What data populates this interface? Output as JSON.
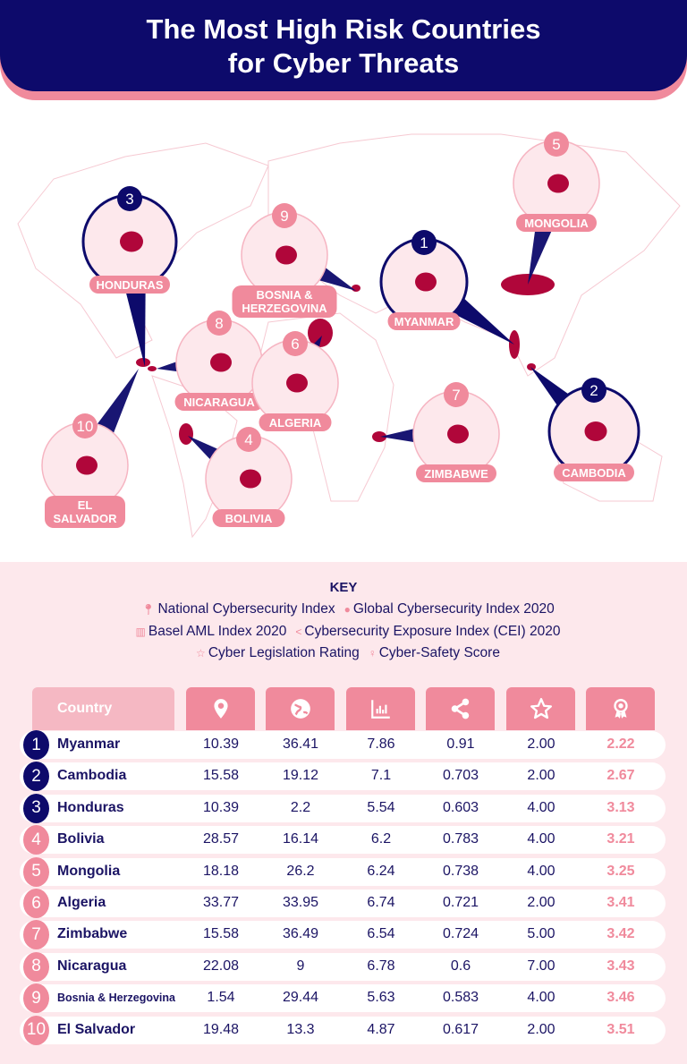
{
  "header": {
    "title_line1": "The Most High Risk Countries",
    "title_line2": "for Cyber Threats"
  },
  "colors": {
    "navy": "#0d0a6b",
    "pink": "#f08a9c",
    "light_pink": "#fde8ec",
    "country_red": "#b0063a"
  },
  "map": {
    "callouts": [
      {
        "rank": "3",
        "label": "HONDURAS"
      },
      {
        "rank": "9",
        "label": "BOSNIA &",
        "label2": "HERZEGOVINA"
      },
      {
        "rank": "5",
        "label": "MONGOLIA"
      },
      {
        "rank": "1",
        "label": "MYANMAR"
      },
      {
        "rank": "8",
        "label": "NICARAGUA"
      },
      {
        "rank": "6",
        "label": "ALGERIA"
      },
      {
        "rank": "7",
        "label": "ZIMBABWE"
      },
      {
        "rank": "2",
        "label": "CAMBODIA"
      },
      {
        "rank": "10",
        "label": "EL",
        "label2": "SALVADOR"
      },
      {
        "rank": "4",
        "label": "BOLIVIA"
      }
    ]
  },
  "key": {
    "title": "KEY",
    "items": [
      {
        "icon": "map-pin-icon",
        "label": "National Cybersecurity Index"
      },
      {
        "icon": "globe-icon",
        "label": "Global Cybersecurity Index 2020"
      },
      {
        "icon": "bar-chart-icon",
        "label": "Basel AML Index 2020"
      },
      {
        "icon": "share-icon",
        "label": "Cybersecurity Exposure Index (CEI) 2020"
      },
      {
        "icon": "star-icon",
        "label": "Cyber Legislation Rating"
      },
      {
        "icon": "award-icon",
        "label": "Cyber-Safety Score"
      }
    ]
  },
  "table": {
    "country_header": "Country",
    "rows": [
      {
        "rank": "1",
        "country": "Myanmar",
        "values": [
          "10.39",
          "36.41",
          "7.86",
          "0.91",
          "2.00"
        ],
        "score": "2.22"
      },
      {
        "rank": "2",
        "country": "Cambodia",
        "values": [
          "15.58",
          "19.12",
          "7.1",
          "0.703",
          "2.00"
        ],
        "score": "2.67"
      },
      {
        "rank": "3",
        "country": "Honduras",
        "values": [
          "10.39",
          "2.2",
          "5.54",
          "0.603",
          "4.00"
        ],
        "score": "3.13"
      },
      {
        "rank": "4",
        "country": "Bolivia",
        "values": [
          "28.57",
          "16.14",
          "6.2",
          "0.783",
          "4.00"
        ],
        "score": "3.21"
      },
      {
        "rank": "5",
        "country": "Mongolia",
        "values": [
          "18.18",
          "26.2",
          "6.24",
          "0.738",
          "4.00"
        ],
        "score": "3.25"
      },
      {
        "rank": "6",
        "country": "Algeria",
        "values": [
          "33.77",
          "33.95",
          "6.74",
          "0.721",
          "2.00"
        ],
        "score": "3.41"
      },
      {
        "rank": "7",
        "country": "Zimbabwe",
        "values": [
          "15.58",
          "36.49",
          "6.54",
          "0.724",
          "5.00"
        ],
        "score": "3.42"
      },
      {
        "rank": "8",
        "country": "Nicaragua",
        "values": [
          "22.08",
          "9",
          "6.78",
          "0.6",
          "7.00"
        ],
        "score": "3.43"
      },
      {
        "rank": "9",
        "country": "Bosnia & Herzegovina",
        "values": [
          "1.54",
          "29.44",
          "5.63",
          "0.583",
          "4.00"
        ],
        "score": "3.46"
      },
      {
        "rank": "10",
        "country": "El Salvador",
        "values": [
          "19.48",
          "13.3",
          "4.87",
          "0.617",
          "2.00"
        ],
        "score": "3.51"
      }
    ]
  }
}
